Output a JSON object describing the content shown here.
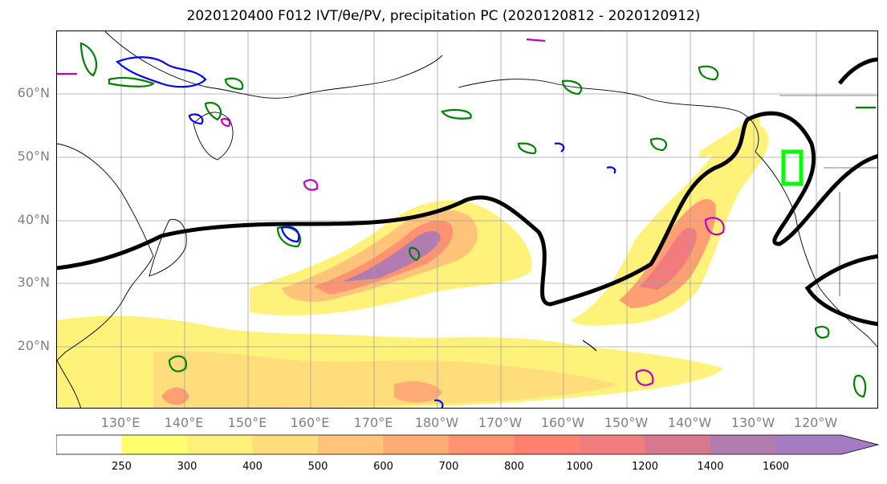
{
  "title": "2020120400 F012 IVT/θe/PV, precipitation PC (2020120812 - 2020120912)",
  "map": {
    "lat_labels": [
      "60°N",
      "50°N",
      "40°N",
      "30°N",
      "20°N"
    ],
    "lon_labels": [
      "130°E",
      "140°E",
      "150°E",
      "160°E",
      "170°E",
      "180°W",
      "170°W",
      "160°W",
      "150°W",
      "140°W",
      "130°W",
      "120°W"
    ]
  },
  "colorbar": {
    "ticks": [
      "250",
      "300",
      "400",
      "500",
      "600",
      "700",
      "800",
      "1000",
      "1200",
      "1400",
      "1600"
    ],
    "colors": [
      "#ffffff",
      "#ffff70",
      "#fff07a",
      "#ffdd7a",
      "#ffc37a",
      "#ffab75",
      "#ff9270",
      "#ff8070",
      "#f07c7e",
      "#d8788e",
      "#b27cb0",
      "#a47cc4",
      "#a47cc4"
    ]
  },
  "legend_colors": {
    "thick_contour": "#000000",
    "green_contour": "#008000",
    "blue_contour": "#0000ff",
    "magenta_contour": "#c000c0",
    "highlight_box": "#00ff00"
  }
}
